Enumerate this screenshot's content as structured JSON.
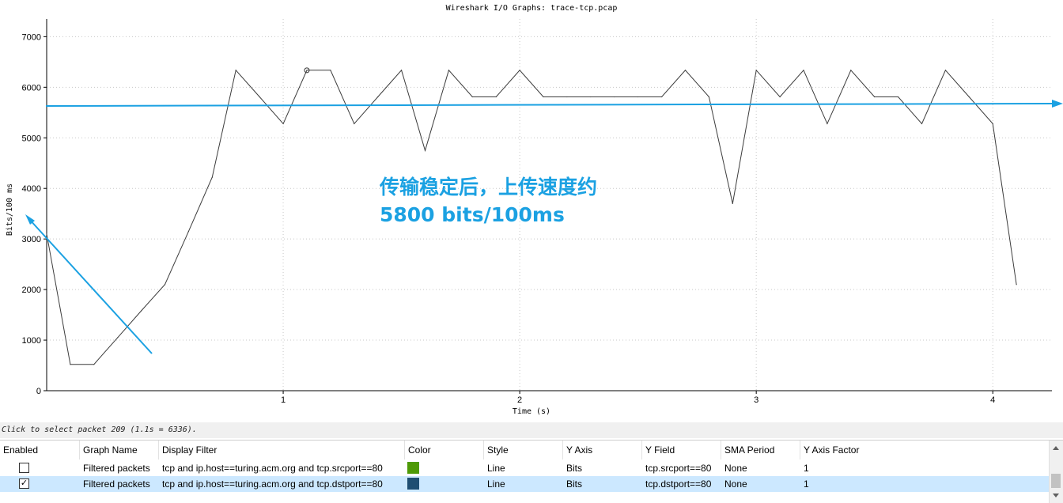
{
  "window_title": "Wireshark I/O Graphs: trace-tcp.pcap",
  "chart_data": {
    "type": "line",
    "title": "Wireshark I/O Graphs: trace-tcp.pcap",
    "xlabel": "Time (s)",
    "ylabel": "Bits/100 ms",
    "xlim": [
      0,
      4.25
    ],
    "ylim": [
      0,
      7350
    ],
    "x_ticks": [
      1,
      2,
      3,
      4
    ],
    "y_ticks": [
      0,
      1000,
      2000,
      3000,
      4000,
      5000,
      6000,
      7000
    ],
    "grid": true,
    "legend": "none",
    "series": [
      {
        "color": "#3c3c3c",
        "x": [
          0.0,
          0.1,
          0.2,
          0.3,
          0.4,
          0.5,
          0.6,
          0.7,
          0.8,
          0.9,
          1.0,
          1.1,
          1.2,
          1.3,
          1.4,
          1.5,
          1.6,
          1.7,
          1.8,
          1.9,
          2.0,
          2.1,
          2.2,
          2.3,
          2.4,
          2.5,
          2.6,
          2.7,
          2.8,
          2.9,
          3.0,
          3.1,
          3.2,
          3.3,
          3.4,
          3.5,
          3.6,
          3.7,
          3.8,
          3.9,
          4.0,
          4.1
        ],
        "values": [
          3100,
          520,
          520,
          1050,
          1580,
          2100,
          3150,
          4220,
          6336,
          5810,
          5280,
          6336,
          6336,
          5280,
          5810,
          6336,
          4750,
          6336,
          5810,
          5810,
          6336,
          5810,
          5810,
          5810,
          5810,
          5810,
          5810,
          6336,
          5810,
          3700,
          6336,
          5810,
          6336,
          5280,
          6336,
          5810,
          5810,
          5280,
          6336,
          5810,
          5280,
          2100
        ]
      }
    ],
    "selected_point": {
      "x": 1.1,
      "y": 6336
    },
    "annotation": {
      "text_line1": "传输稳定后，上传速度约",
      "text_line2": "5800 bits/100ms",
      "color": "#1ba1e2"
    }
  },
  "status_text": "Click to select packet 209 (1.1s = 6336).",
  "table": {
    "headers": [
      "Enabled",
      "Graph Name",
      "Display Filter",
      "Color",
      "Style",
      "Y Axis",
      "Y Field",
      "SMA Period",
      "Y Axis Factor"
    ],
    "rows": [
      {
        "enabled": false,
        "checkmark": "",
        "name": "Filtered packets",
        "filter": "tcp and ip.host==turing.acm.org and tcp.srcport==80",
        "color": "#4e9a06",
        "style": "Line",
        "y_axis": "Bits",
        "y_field": "tcp.srcport==80",
        "sma": "None",
        "factor": "1"
      },
      {
        "enabled": true,
        "checkmark": "✓",
        "name": "Filtered packets",
        "filter": "tcp and ip.host==turing.acm.org and tcp.dstport==80",
        "color": "#1f4e72",
        "style": "Line",
        "y_axis": "Bits",
        "y_field": "tcp.dstport==80",
        "sma": "None",
        "factor": "1"
      }
    ]
  }
}
